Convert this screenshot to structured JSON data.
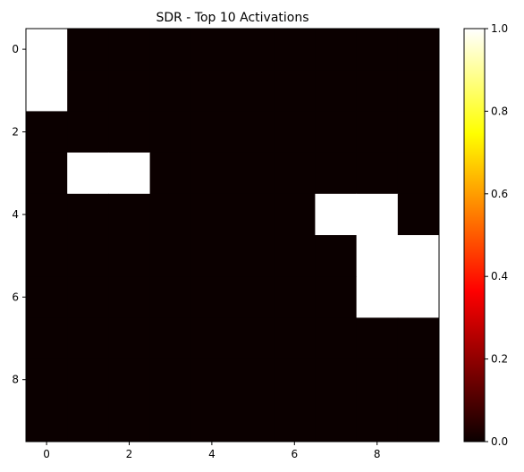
{
  "chart_data": {
    "type": "heatmap",
    "title": "SDR - Top 10 Activations",
    "rows": 10,
    "cols": 10,
    "values": [
      [
        1,
        0,
        0,
        0,
        0,
        0,
        0,
        0,
        0,
        0
      ],
      [
        1,
        0,
        0,
        0,
        0,
        0,
        0,
        0,
        0,
        0
      ],
      [
        0,
        0,
        0,
        0,
        0,
        0,
        0,
        0,
        0,
        0
      ],
      [
        0,
        1,
        1,
        0,
        0,
        0,
        0,
        0,
        0,
        0
      ],
      [
        0,
        0,
        0,
        0,
        0,
        0,
        0,
        1,
        1,
        0
      ],
      [
        0,
        0,
        0,
        0,
        0,
        0,
        0,
        0,
        1,
        1
      ],
      [
        0,
        0,
        0,
        0,
        0,
        0,
        0,
        0,
        1,
        1
      ],
      [
        0,
        0,
        0,
        0,
        0,
        0,
        0,
        0,
        0,
        0
      ],
      [
        0,
        0,
        0,
        0,
        0,
        0,
        0,
        0,
        0,
        0
      ],
      [
        0,
        0,
        0,
        0,
        0,
        0,
        0,
        0,
        0,
        0
      ]
    ],
    "x_ticks": [
      "0",
      "2",
      "4",
      "6",
      "8"
    ],
    "y_ticks": [
      "0",
      "2",
      "4",
      "6",
      "8"
    ],
    "colormap": "hot",
    "colorbar": {
      "range": [
        0,
        1
      ],
      "ticks": [
        "0.0",
        "0.2",
        "0.4",
        "0.6",
        "0.8",
        "1.0"
      ]
    },
    "grid": false
  }
}
